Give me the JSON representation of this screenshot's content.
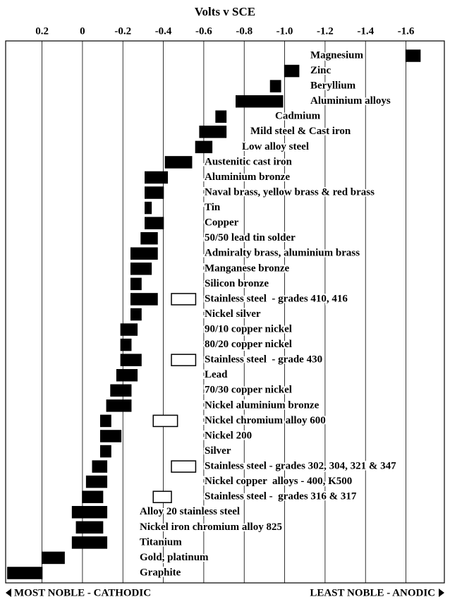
{
  "chart_data": {
    "type": "floating-bar",
    "x_label": "Volts v SCE",
    "xlim": [
      0.38,
      -1.79
    ],
    "xticks": [
      0.2,
      0,
      -0.2,
      -0.4,
      -0.6,
      -0.8,
      {
        "value": -1,
        "label": "-1.0"
      },
      -1.2,
      -1.4,
      -1.6
    ],
    "grid": true,
    "color": "#000000",
    "active_color": "#ffffff",
    "left_note": "MOST NOBLE - CATHODIC",
    "right_note": "LEAST NOBLE - ANODIC",
    "categories": [
      "Magnesium",
      "Zinc",
      "Beryllium",
      "Aluminium alloys",
      "Cadmium",
      "Mild steel & Cast iron",
      "Low alloy steel",
      "Austenitic cast iron",
      "Aluminium bronze",
      "Naval brass, yellow brass & red brass",
      "Tin",
      "Copper",
      "50/50 lead tin solder",
      "Admiralty brass, aluminium brass",
      "Manganese bronze",
      "Silicon bronze",
      "Stainless steel  - grades 410, 416",
      "Nickel silver",
      "90/10 copper nickel",
      "80/20 copper nickel",
      "Stainless steel  - grade 430",
      "Lead",
      "70/30 copper nickel",
      "Nickel aluminium bronze",
      "Nickel chromium alloy 600",
      "Nickel 200",
      "Silver",
      "Stainless steel - grades 302, 304, 321 & 347",
      "Nickel copper  alloys - 400, K500",
      "Stainless steel -  grades 316 & 317",
      "Alloy 20 stainless steel",
      "Nickel iron chromium alloy 825",
      "Titanium",
      "Gold, platinum",
      "Graphite"
    ],
    "ranges": [
      [
        -1.6,
        -1.67
      ],
      [
        -1.0,
        -1.07
      ],
      [
        -0.93,
        -0.98
      ],
      [
        -0.76,
        -0.99
      ],
      [
        -0.66,
        -0.71
      ],
      [
        -0.58,
        -0.71
      ],
      [
        -0.56,
        -0.64
      ],
      [
        -0.41,
        -0.54
      ],
      [
        -0.31,
        -0.42
      ],
      [
        -0.31,
        -0.4
      ],
      [
        -0.31,
        -0.34
      ],
      [
        -0.31,
        -0.4
      ],
      [
        -0.29,
        -0.37
      ],
      [
        -0.24,
        -0.37
      ],
      [
        -0.24,
        -0.34
      ],
      [
        -0.24,
        -0.29
      ],
      [
        -0.24,
        -0.37
      ],
      [
        -0.24,
        -0.29
      ],
      [
        -0.19,
        -0.27
      ],
      [
        -0.19,
        -0.24
      ],
      [
        -0.19,
        -0.29
      ],
      [
        -0.17,
        -0.27
      ],
      [
        -0.14,
        -0.24
      ],
      [
        -0.12,
        -0.24
      ],
      [
        -0.09,
        -0.14
      ],
      [
        -0.09,
        -0.19
      ],
      [
        -0.09,
        -0.14
      ],
      [
        -0.05,
        -0.12
      ],
      [
        -0.02,
        -0.12
      ],
      [
        0,
        -0.1
      ],
      [
        0.05,
        -0.12
      ],
      [
        0.03,
        -0.1
      ],
      [
        0.05,
        -0.12
      ],
      [
        0.2,
        0.09
      ],
      [
        0.37,
        0.2
      ]
    ],
    "active_ranges": [
      null,
      null,
      null,
      null,
      null,
      null,
      null,
      null,
      null,
      null,
      null,
      null,
      null,
      null,
      null,
      null,
      [
        -0.44,
        -0.56
      ],
      null,
      null,
      null,
      [
        -0.44,
        -0.56
      ],
      null,
      null,
      null,
      [
        -0.35,
        -0.47
      ],
      null,
      null,
      [
        -0.44,
        -0.56
      ],
      null,
      [
        -0.35,
        -0.44
      ],
      null,
      null,
      null,
      null,
      null
    ]
  }
}
